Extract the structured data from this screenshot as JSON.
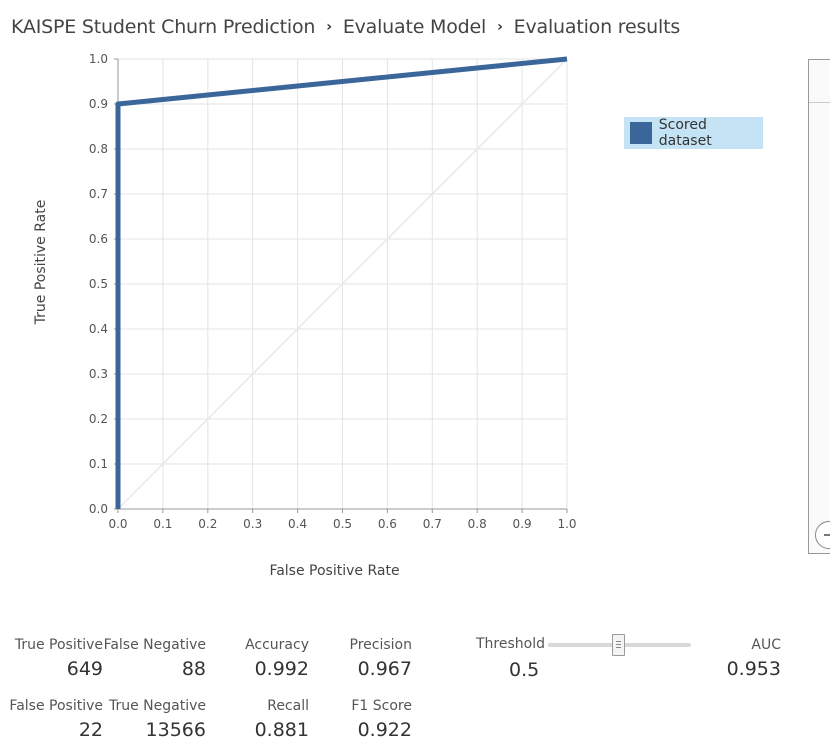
{
  "breadcrumb": {
    "items": [
      "KAISPE Student Churn Prediction",
      "Evaluate Model",
      "Evaluation results"
    ],
    "separator": "›"
  },
  "legend": {
    "label": "Scored dataset",
    "color": "#3a6699"
  },
  "threshold": {
    "label": "Threshold",
    "value": "0.5",
    "slider_fraction": 0.5
  },
  "metrics": {
    "true_positive": {
      "label": "True Positive",
      "value": "649"
    },
    "false_negative": {
      "label": "False Negative",
      "value": "88"
    },
    "accuracy": {
      "label": "Accuracy",
      "value": "0.992"
    },
    "precision": {
      "label": "Precision",
      "value": "0.967"
    },
    "auc": {
      "label": "AUC",
      "value": "0.953"
    },
    "false_positive": {
      "label": "False Positive",
      "value": "22"
    },
    "true_negative": {
      "label": "True Negative",
      "value": "13566"
    },
    "recall": {
      "label": "Recall",
      "value": "0.881"
    },
    "f1_score": {
      "label": "F1 Score",
      "value": "0.922"
    }
  },
  "chart_data": {
    "type": "line",
    "xlabel": "False Positive Rate",
    "ylabel": "True Positive Rate",
    "xlim": [
      0,
      1
    ],
    "ylim": [
      0,
      1
    ],
    "x_ticks": [
      "0.0",
      "0.1",
      "0.2",
      "0.3",
      "0.4",
      "0.5",
      "0.6",
      "0.7",
      "0.8",
      "0.9",
      "1.0"
    ],
    "y_ticks": [
      "0.0",
      "0.1",
      "0.2",
      "0.3",
      "0.4",
      "0.5",
      "0.6",
      "0.7",
      "0.8",
      "0.9",
      "1.0"
    ],
    "grid": true,
    "legend": "top-right",
    "series": [
      {
        "name": "Scored dataset",
        "color": "#3a6699",
        "points": [
          [
            0,
            0
          ],
          [
            0,
            0.9
          ],
          [
            0.1,
            0.91
          ],
          [
            0.4,
            0.94
          ],
          [
            1,
            1
          ]
        ]
      },
      {
        "color": "#e8e8e8",
        "points": [
          [
            0,
            0
          ],
          [
            1,
            1
          ]
        ]
      }
    ]
  }
}
